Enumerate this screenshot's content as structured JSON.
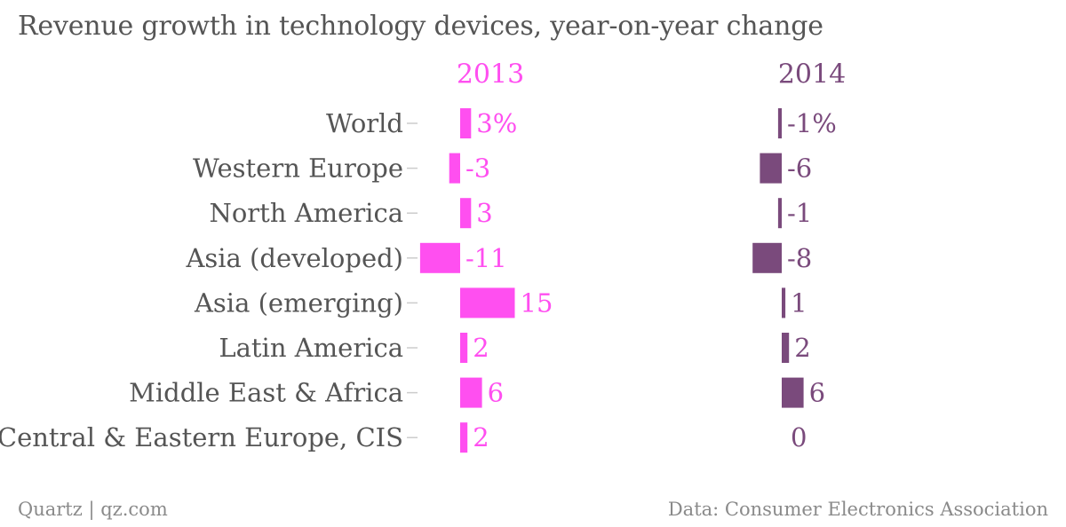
{
  "header": {
    "title": "Revenue growth in technology devices, year-on-year change"
  },
  "footer": {
    "source": "Quartz | qz.com",
    "credit": "Data: Consumer Electronics Association"
  },
  "colors": {
    "series_2013": "#ff4ff0",
    "series_2014": "#7a4a7c",
    "label_text": "#555555",
    "tick": "#cccccc"
  },
  "chart_data": {
    "type": "bar",
    "orientation": "horizontal",
    "layout": "small-multiples",
    "categories": [
      "World",
      "Western Europe",
      "North America",
      "Asia (developed)",
      "Asia (emerging)",
      "Latin America",
      "Middle East & Africa",
      "Central & Eastern Europe, CIS"
    ],
    "series": [
      {
        "name": "2013",
        "values": [
          3,
          -3,
          3,
          -11,
          15,
          2,
          6,
          2
        ],
        "labels": [
          "3%",
          "-3",
          "3",
          "-11",
          "15",
          "2",
          "6",
          "2"
        ],
        "color": "#ff4ff0"
      },
      {
        "name": "2014",
        "values": [
          -1,
          -6,
          -1,
          -8,
          1,
          2,
          6,
          0
        ],
        "labels": [
          "-1%",
          "-6",
          "-1",
          "-8",
          "1",
          "2",
          "6",
          "0"
        ],
        "color": "#7a4a7c"
      }
    ],
    "grid": false,
    "legend": "column headers"
  }
}
